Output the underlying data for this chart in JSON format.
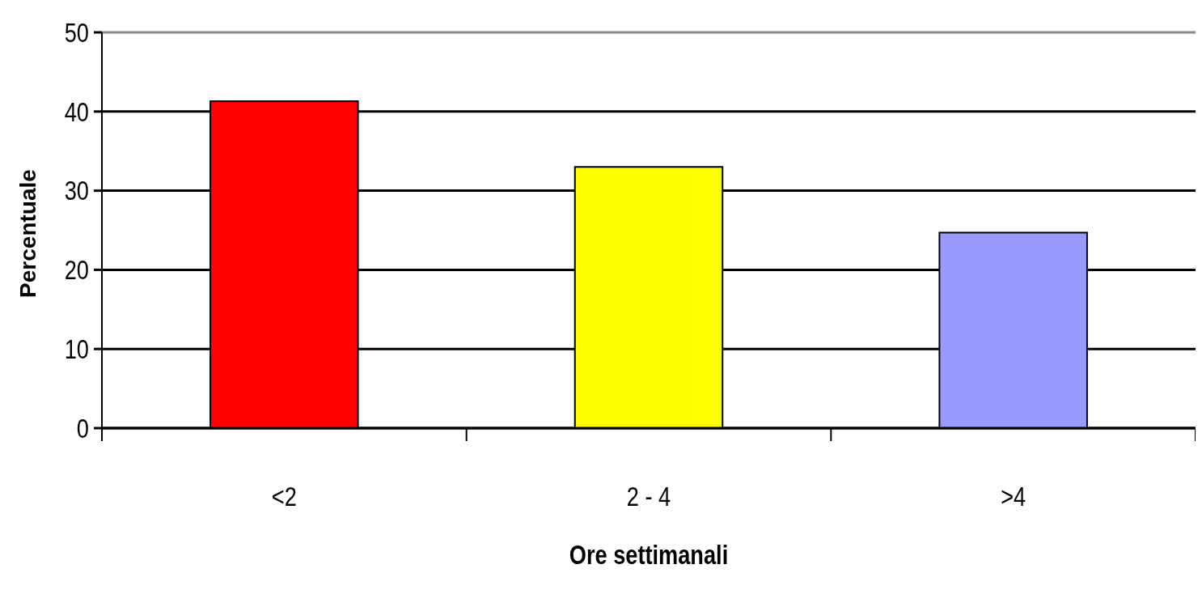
{
  "chart_data": {
    "type": "bar",
    "xlabel": "Ore settimanali",
    "ylabel": "Percentuale",
    "categories": [
      "<2",
      "2 - 4",
      ">4"
    ],
    "values": [
      41.3,
      33,
      24.7
    ],
    "colors": [
      "#ff0000",
      "#ffff00",
      "#9999ff"
    ],
    "ylim": [
      0,
      50
    ],
    "yticks": [
      0,
      10,
      20,
      30,
      40,
      50
    ],
    "grid": "y"
  }
}
